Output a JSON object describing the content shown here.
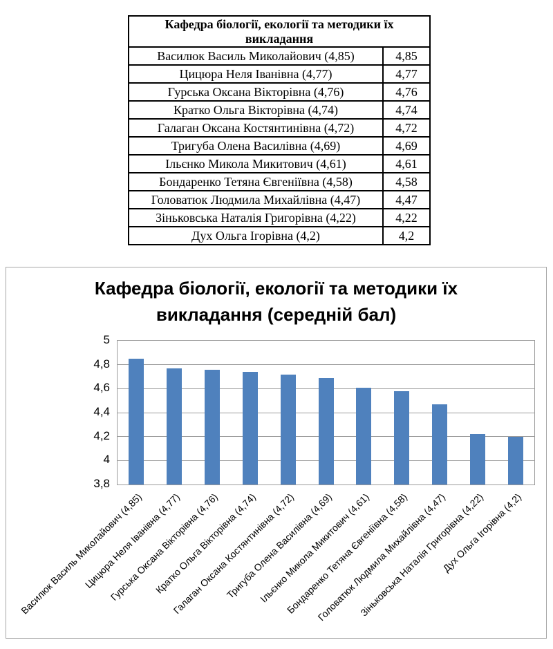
{
  "table": {
    "header": "Кафедра біології, екології та методики їх викладання",
    "rows": [
      {
        "label": "Василюк Василь Миколайович (4,85)",
        "value": "4,85"
      },
      {
        "label": "Цицюра Неля Іванівна (4,77)",
        "value": "4,77"
      },
      {
        "label": "Гурська Оксана Вікторівна (4,76)",
        "value": "4,76"
      },
      {
        "label": "Кратко Ольга Вікторівна (4,74)",
        "value": "4,74"
      },
      {
        "label": "Галаган Оксана Костянтинівна (4,72)",
        "value": "4,72"
      },
      {
        "label": "Тригуба Олена Василівна (4,69)",
        "value": "4,69"
      },
      {
        "label": "Ільєнко Микола Микитович (4,61)",
        "value": "4,61"
      },
      {
        "label": "Бондаренко Тетяна Євгеніївна (4,58)",
        "value": "4,58"
      },
      {
        "label": "Головатюк Людмила Михайлівна (4,47)",
        "value": "4,47"
      },
      {
        "label": "Зіньковська Наталія Григорівна (4,22)",
        "value": "4,22"
      },
      {
        "label": "Дух Ольга Ігорівна (4,2)",
        "value": "4,2"
      }
    ]
  },
  "chart": {
    "title_lines": [
      "Кафедра біології, екології та методики їх",
      "викладання (середній бал)"
    ]
  },
  "chart_data": {
    "type": "bar",
    "title": "Кафедра біології, екології та методики їх викладання (середній бал)",
    "categories": [
      "Василюк Василь Миколайович (4,85)",
      "Цицюра Неля Іванівна (4,77)",
      "Гурська Оксана Вікторівна (4,76)",
      "Кратко Ольга Вікторівна (4,74)",
      "Галаган Оксана Костянтинівна (4,72)",
      "Тригуба Олена Василівна (4,69)",
      "Ільєнко Микола Микитович (4,61)",
      "Бондаренко Тетяна Євгеніївна (4,58)",
      "Головатюк Людмила Михайлівна (4,47)",
      "Зіньковська Наталія Григорівна (4,22)",
      "Дух Ольга Ігорівна (4,2)"
    ],
    "values": [
      4.85,
      4.77,
      4.76,
      4.74,
      4.72,
      4.69,
      4.61,
      4.58,
      4.47,
      4.22,
      4.2
    ],
    "xlabel": "",
    "ylabel": "",
    "ylim": [
      3.8,
      5
    ],
    "ytick_values": [
      5,
      4.8,
      4.6,
      4.4,
      4.2,
      4,
      3.8
    ],
    "ytick_labels": [
      "5",
      "4,8",
      "4,6",
      "4,4",
      "4,2",
      "4",
      "3,8"
    ],
    "grid": true,
    "legend": "none",
    "bar_color": "#4F81BD",
    "gridline_color": "#9a9a9a",
    "frame_border_color": "#a6a6a6"
  }
}
